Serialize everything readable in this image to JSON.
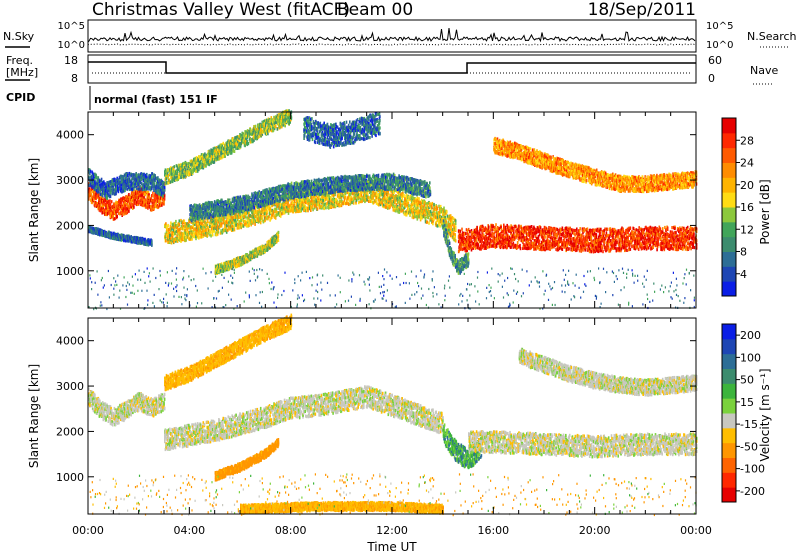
{
  "header": {
    "site": "Christmas Valley West (fitACF)",
    "beam": "Beam 00",
    "date": "18/Sep/2011"
  },
  "noise_panel": {
    "left_label": "N.Sky",
    "right_label": "N.Search",
    "left_ticks": [
      "10^5",
      "10^0"
    ],
    "right_ticks": [
      "10^5",
      "10^0"
    ]
  },
  "freq_panel": {
    "left_label_1": "Freq.",
    "left_label_2": "[MHz]",
    "right_label": "Nave",
    "left_ticks": [
      "18",
      "8"
    ],
    "right_ticks": [
      "60",
      "0"
    ]
  },
  "cpid_panel": {
    "label": "CPID",
    "text": "normal (fast) 151 IF"
  },
  "colors": {
    "power_scale": [
      "#0a1ee6",
      "#1e46b4",
      "#2d6e96",
      "#3c8c6e",
      "#41a55a",
      "#8cc83c",
      "#ffdc14",
      "#ffb400",
      "#ff8c00",
      "#ff5a00",
      "#ff2800",
      "#e60000"
    ],
    "velocity_scale": [
      "#0a1ee6",
      "#1e46b4",
      "#2d6e96",
      "#3c8c6e",
      "#3cb43c",
      "#7ad23c",
      "#c8c8c0",
      "#ffbe00",
      "#ff9600",
      "#ff6400",
      "#ff2800",
      "#e60000"
    ]
  },
  "chart_data": [
    {
      "type": "heatmap",
      "panel": "power",
      "ylabel": "Slant Range [km]",
      "colorbar_label": "Power [dB]",
      "colorbar_ticks": [
        "4",
        "8",
        "12",
        "16",
        "20",
        "24",
        "28"
      ],
      "colorbar_range": [
        0,
        32
      ],
      "y_ticks": [
        "1000",
        "2000",
        "3000",
        "4000"
      ],
      "ylim": [
        180,
        4500
      ],
      "xlim": [
        0,
        24
      ],
      "features": [
        {
          "id": "near-range-echo-dawn",
          "x": [
            0.0,
            0.5,
            1.0,
            1.5,
            2.0,
            2.5,
            3.0
          ],
          "y": [
            2800,
            2500,
            2350,
            2500,
            2700,
            2550,
            2700
          ],
          "half_width": 190,
          "value": 26
        },
        {
          "id": "outer-dawn-band",
          "x": [
            0.0,
            0.7,
            1.5,
            2.5,
            3.0
          ],
          "y": [
            3100,
            2800,
            3000,
            3000,
            2800
          ],
          "half_width": 180,
          "value": 6
        },
        {
          "id": "main-ionospheric-band",
          "x": [
            3.0,
            4.0,
            5.0,
            6.0,
            7.0,
            8.0,
            9.0,
            10.0,
            11.0,
            12.0,
            13.0,
            14.0,
            14.5
          ],
          "y": [
            1850,
            1950,
            2050,
            2200,
            2350,
            2550,
            2600,
            2700,
            2800,
            2600,
            2400,
            2200,
            1900
          ],
          "half_width": 230,
          "value": 18
        },
        {
          "id": "main-band-upper-edge",
          "x": [
            4.0,
            6.0,
            8.0,
            10.0,
            12.0,
            13.5
          ],
          "y": [
            2300,
            2500,
            2800,
            2950,
            3000,
            2800
          ],
          "half_width": 170,
          "value": 8
        },
        {
          "id": "rising-arc-top",
          "x": [
            3.0,
            4.0,
            5.0,
            6.0,
            7.0,
            8.0
          ],
          "y": [
            3100,
            3300,
            3600,
            3900,
            4200,
            4450
          ],
          "half_width": 160,
          "value": 14
        },
        {
          "id": "morning-faint-arc",
          "x": [
            5.0,
            6.0,
            7.0,
            7.5
          ],
          "y": [
            1050,
            1250,
            1550,
            1800
          ],
          "half_width": 90,
          "value": 15
        },
        {
          "id": "low-range-dawn-tail",
          "x": [
            0.0,
            1.0,
            2.0,
            2.5
          ],
          "y": [
            1950,
            1800,
            1700,
            1650
          ],
          "half_width": 60,
          "value": 6
        },
        {
          "id": "late-morning-cloud",
          "x": [
            8.5,
            9.5,
            10.5,
            11.5
          ],
          "y": [
            4200,
            4000,
            4100,
            4300
          ],
          "half_width": 250,
          "value": 6
        },
        {
          "id": "dusk-strong-band",
          "x": [
            14.6,
            16.0,
            18.0,
            20.0,
            22.0,
            24.0
          ],
          "y": [
            1700,
            1800,
            1750,
            1700,
            1750,
            1750
          ],
          "half_width": 250,
          "value": 28
        },
        {
          "id": "dusk-upper-band",
          "x": [
            16.0,
            17.0,
            18.0,
            19.0,
            20.0,
            21.0,
            22.0,
            23.0,
            24.0
          ],
          "y": [
            3800,
            3650,
            3450,
            3250,
            3100,
            2950,
            2950,
            3000,
            3050
          ],
          "half_width": 170,
          "value": 22
        },
        {
          "id": "evening-dip",
          "x": [
            14.0,
            14.3,
            14.6,
            15.0
          ],
          "y": [
            2000,
            1400,
            1100,
            1300
          ],
          "half_width": 150,
          "value": 10
        }
      ]
    },
    {
      "type": "heatmap",
      "panel": "velocity",
      "ylabel": "Slant Range [km]",
      "colorbar_label": "Velocity [m s⁻¹]",
      "colorbar_ticks": [
        "200",
        "100",
        "50",
        "15",
        "-15",
        "-50",
        "-100",
        "-200"
      ],
      "y_ticks": [
        "1000",
        "2000",
        "3000",
        "4000"
      ],
      "ylim": [
        180,
        4500
      ],
      "xlim": [
        0,
        24
      ],
      "x_ticks": [
        "00:00",
        "04:00",
        "08:00",
        "12:00",
        "16:00",
        "20:00",
        "00:00"
      ],
      "xlabel": "Time UT",
      "features": [
        {
          "id": "near-range-echo-dawn",
          "x": [
            0.0,
            0.5,
            1.0,
            1.5,
            2.0,
            2.5,
            3.0
          ],
          "y": [
            2800,
            2500,
            2350,
            2500,
            2700,
            2550,
            2700
          ],
          "half_width": 190,
          "value": 0
        },
        {
          "id": "main-ionospheric-band",
          "x": [
            3.0,
            4.0,
            5.0,
            6.0,
            7.0,
            8.0,
            9.0,
            10.0,
            11.0,
            12.0,
            13.0,
            14.0
          ],
          "y": [
            1850,
            1950,
            2050,
            2200,
            2350,
            2550,
            2600,
            2700,
            2800,
            2600,
            2400,
            2200
          ],
          "half_width": 230,
          "value": 0
        },
        {
          "id": "rising-arc-top",
          "x": [
            3.0,
            4.0,
            5.0,
            6.0,
            7.0,
            8.0
          ],
          "y": [
            3100,
            3300,
            3600,
            3900,
            4200,
            4450
          ],
          "half_width": 160,
          "value": -40
        },
        {
          "id": "morning-faint-arc",
          "x": [
            5.0,
            6.0,
            7.0,
            7.5
          ],
          "y": [
            1050,
            1250,
            1550,
            1800
          ],
          "half_width": 90,
          "value": -70
        },
        {
          "id": "evening-green-patch",
          "x": [
            14.0,
            14.5,
            15.0,
            15.5
          ],
          "y": [
            2000,
            1600,
            1400,
            1700
          ],
          "half_width": 220,
          "value": 40
        },
        {
          "id": "dusk-strong-band",
          "x": [
            15.0,
            16.0,
            18.0,
            20.0,
            22.0,
            24.0
          ],
          "y": [
            1800,
            1800,
            1750,
            1700,
            1750,
            1750
          ],
          "half_width": 230,
          "value": 0
        },
        {
          "id": "dusk-upper-band",
          "x": [
            17.0,
            18.0,
            19.0,
            20.0,
            21.0,
            22.0,
            23.0,
            24.0
          ],
          "y": [
            3700,
            3500,
            3300,
            3150,
            3050,
            3000,
            3050,
            3100
          ],
          "half_width": 170,
          "value": 0
        },
        {
          "id": "ground-scatter-floor",
          "x": [
            6.0,
            9.0,
            12.0,
            14.0
          ],
          "y": [
            320,
            380,
            380,
            320
          ],
          "half_width": 90,
          "value": -40
        }
      ]
    }
  ]
}
